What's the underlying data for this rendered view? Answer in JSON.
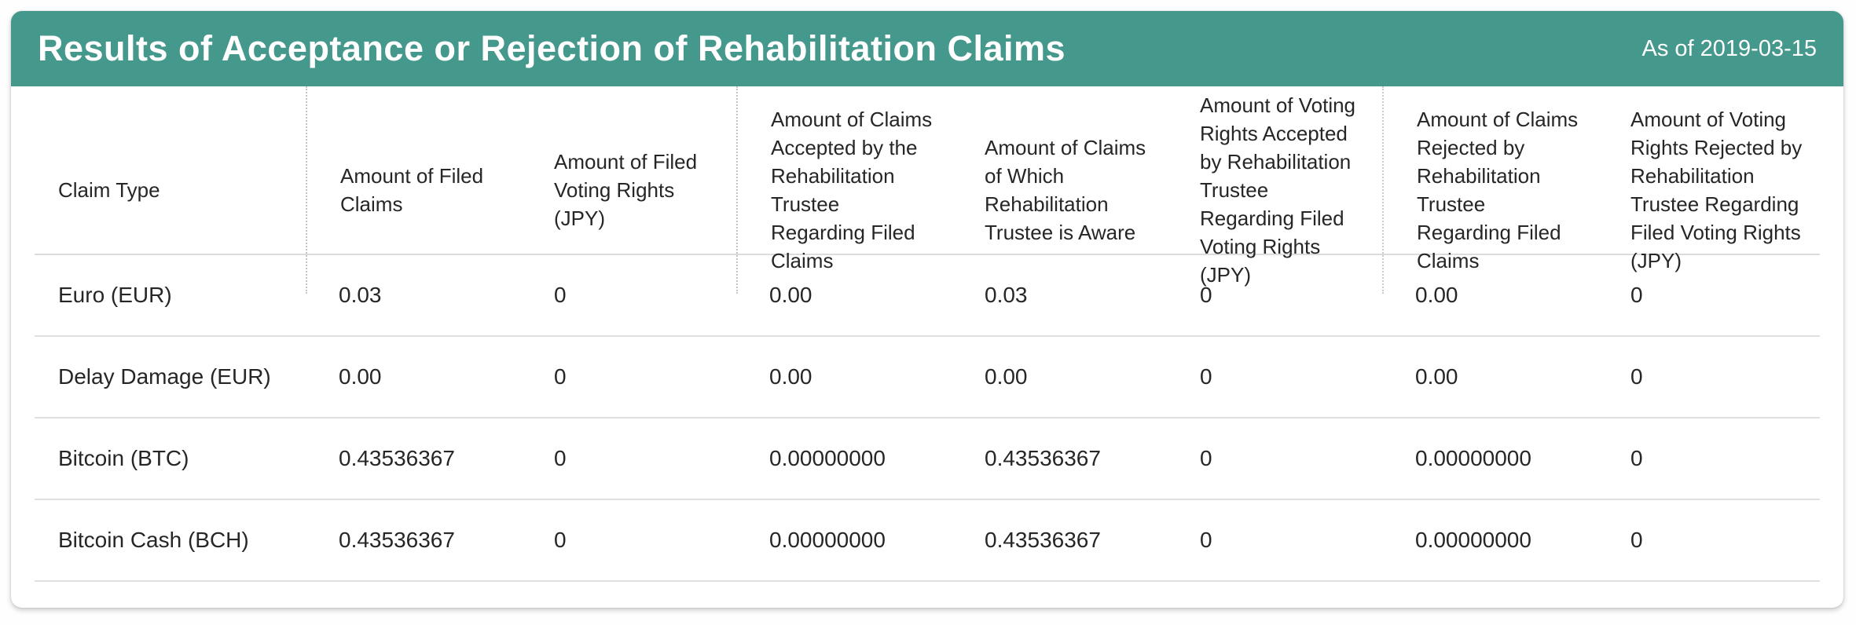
{
  "colors": {
    "accent": "#45988c"
  },
  "header": {
    "title": "Results of Acceptance or Rejection of Rehabilitation Claims",
    "as_of": "As of 2019-03-15"
  },
  "table": {
    "columns": [
      "Claim Type",
      "Amount of Filed Claims",
      "Amount of Filed Voting Rights (JPY)",
      "Amount of Claims Accepted by the Rehabilitation Trustee Regarding Filed Claims",
      "Amount of Claims of Which Rehabilitation Trustee is Aware",
      "Amount of Voting Rights Accepted by Rehabilitation Trustee Regarding Filed Voting Rights (JPY)",
      "Amount of Claims Rejected by Rehabilitation Trustee Regarding Filed Claims",
      "Amount of Voting Rights Rejected by Rehabilitation Trustee Regarding Filed Voting Rights (JPY)"
    ],
    "rows": [
      {
        "claim_type": "Euro (EUR)",
        "values": [
          "0.03",
          "0",
          "0.00",
          "0.03",
          "0",
          "0.00",
          "0"
        ]
      },
      {
        "claim_type": "Delay Damage (EUR)",
        "values": [
          "0.00",
          "0",
          "0.00",
          "0.00",
          "0",
          "0.00",
          "0"
        ]
      },
      {
        "claim_type": "Bitcoin (BTC)",
        "values": [
          "0.43536367",
          "0",
          "0.00000000",
          "0.43536367",
          "0",
          "0.00000000",
          "0"
        ]
      },
      {
        "claim_type": "Bitcoin Cash (BCH)",
        "values": [
          "0.43536367",
          "0",
          "0.00000000",
          "0.43536367",
          "0",
          "0.00000000",
          "0"
        ]
      }
    ]
  }
}
